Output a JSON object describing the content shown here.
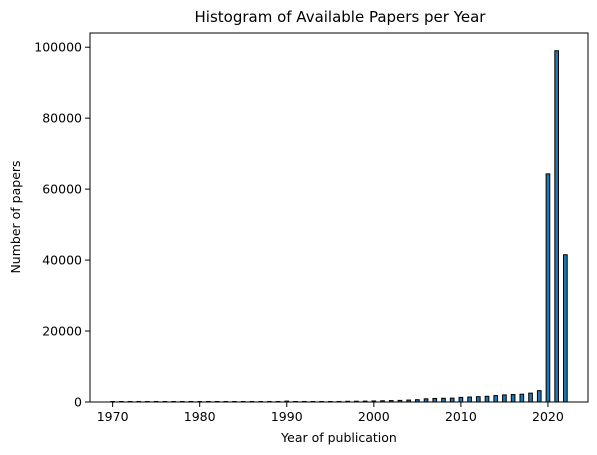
{
  "chart_data": {
    "type": "bar",
    "title": "Histogram of Available Papers per Year",
    "xlabel": "Year of publication",
    "ylabel": "Number of papers",
    "xlim": [
      1967.4,
      2024.6
    ],
    "ylim": [
      0,
      104000
    ],
    "xticks": [
      1970,
      1980,
      1990,
      2000,
      2010,
      2020
    ],
    "yticks": [
      0,
      20000,
      40000,
      60000,
      80000,
      100000
    ],
    "grid": false,
    "bar_color": "#1f77b4",
    "edge_color": "#000000",
    "x": [
      1970,
      1971,
      1972,
      1973,
      1974,
      1975,
      1976,
      1977,
      1978,
      1979,
      1980,
      1981,
      1982,
      1983,
      1984,
      1985,
      1986,
      1987,
      1988,
      1989,
      1990,
      1991,
      1992,
      1993,
      1994,
      1995,
      1996,
      1997,
      1998,
      1999,
      2000,
      2001,
      2002,
      2003,
      2004,
      2005,
      2006,
      2007,
      2008,
      2009,
      2010,
      2011,
      2012,
      2013,
      2014,
      2015,
      2016,
      2017,
      2018,
      2019,
      2020,
      2021,
      2022
    ],
    "values": [
      10,
      10,
      10,
      10,
      10,
      10,
      10,
      10,
      10,
      10,
      20,
      10,
      10,
      10,
      10,
      10,
      10,
      20,
      20,
      20,
      250,
      30,
      150,
      30,
      50,
      80,
      150,
      200,
      220,
      250,
      300,
      350,
      400,
      450,
      550,
      650,
      900,
      1000,
      1050,
      1100,
      1300,
      1400,
      1500,
      1600,
      1800,
      2000,
      2100,
      2200,
      2500,
      3200,
      64300,
      99000,
      41500
    ]
  }
}
